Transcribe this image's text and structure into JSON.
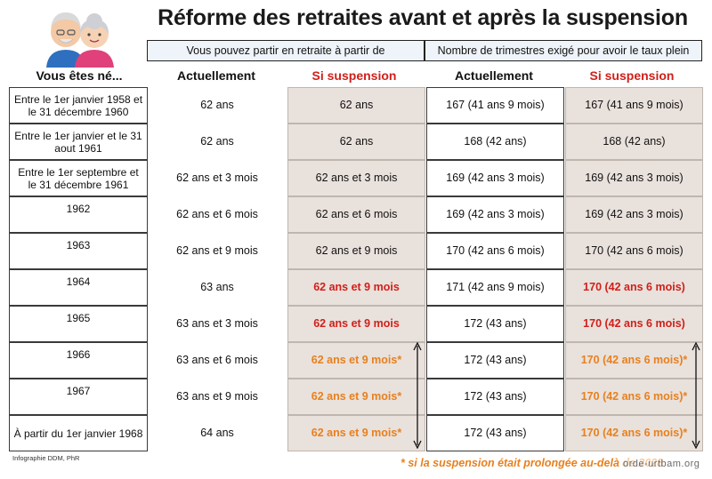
{
  "title": "Réforme des retraites avant et après la suspension",
  "headers": {
    "group_age": "Vous pouvez partir en retraite à partir de",
    "group_quarters": "Nombre de trimestres exigé pour avoir le taux plein",
    "born": "Vous êtes né...",
    "current": "Actuellement",
    "suspension": "Si suspension"
  },
  "colors": {
    "red": "#d0201b",
    "orange": "#e8801d",
    "shade": "#e9e1dc",
    "header_bg": "#eef4fa"
  },
  "rows": [
    {
      "born": "Entre le 1er janvier 1958 et le 31 décembre 1960",
      "age_now": "62 ans",
      "age_susp": "62 ans",
      "q_now": "167 (41 ans 9 mois)",
      "q_susp": "167 (41 ans 9 mois)",
      "style": "plain"
    },
    {
      "born": "Entre le 1er janvier et le 31 aout 1961",
      "age_now": "62 ans",
      "age_susp": "62 ans",
      "q_now": "168 (42 ans)",
      "q_susp": "168 (42 ans)",
      "style": "plain"
    },
    {
      "born": "Entre le 1er septembre et le 31 décembre 1961",
      "age_now": "62 ans et 3 mois",
      "age_susp": "62 ans et 3 mois",
      "q_now": "169 (42 ans 3 mois)",
      "q_susp": "169 (42 ans 3 mois)",
      "style": "plain"
    },
    {
      "born": "1962",
      "age_now": "62 ans et 6 mois",
      "age_susp": "62 ans et 6 mois",
      "q_now": "169 (42 ans 3 mois)",
      "q_susp": "169 (42 ans 3 mois)",
      "style": "plain"
    },
    {
      "born": "1963",
      "age_now": "62 ans et 9 mois",
      "age_susp": "62 ans et 9 mois",
      "q_now": "170 (42 ans 6 mois)",
      "q_susp": "170 (42 ans 6 mois)",
      "style": "plain"
    },
    {
      "born": "1964",
      "age_now": "63 ans",
      "age_susp": "62 ans et 9 mois",
      "q_now": "171 (42 ans 9 mois)",
      "q_susp": "170 (42 ans 6 mois)",
      "style": "red"
    },
    {
      "born": "1965",
      "age_now": "63 ans et 3 mois",
      "age_susp": "62 ans et 9 mois",
      "q_now": "172 (43 ans)",
      "q_susp": "170 (42 ans 6 mois)",
      "style": "red"
    },
    {
      "born": "1966",
      "age_now": "63 ans et 6 mois",
      "age_susp": "62 ans et 9 mois*",
      "q_now": "172 (43 ans)",
      "q_susp": "170 (42 ans 6 mois)*",
      "style": "orange"
    },
    {
      "born": "1967",
      "age_now": "63 ans et 9 mois",
      "age_susp": "62 ans et 9 mois*",
      "q_now": "172 (43 ans)",
      "q_susp": "170 (42 ans 6 mois)*",
      "style": "orange"
    },
    {
      "born": "À partir du 1er janvier 1968",
      "age_now": "64 ans",
      "age_susp": "62 ans et 9 mois*",
      "q_now": "172 (43 ans)",
      "q_susp": "170 (42 ans 6 mois)*",
      "style": "orange"
    }
  ],
  "credit": "Infographie DDM, PhR",
  "footnote": "* si la suspension était prolongée au-delà de 2028",
  "watermark": "orde-urtbam.org"
}
